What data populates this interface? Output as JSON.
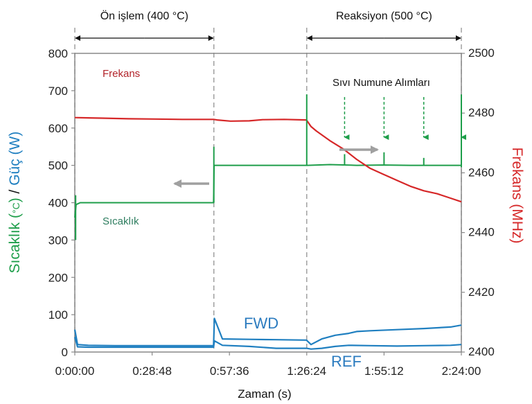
{
  "chart_data": {
    "type": "line",
    "title": "",
    "xlabel": "Zaman (s)",
    "ylabel_left_parts": [
      {
        "text": "Sıcaklık (",
        "color": "#1e9e4a"
      },
      {
        "text": "°C",
        "color": "#1e9e4a",
        "small": true
      },
      {
        "text": ") ",
        "color": "#1e9e4a"
      },
      {
        "text": "/ ",
        "color": "#111111"
      },
      {
        "text": "Güç (W)",
        "color": "#1f7fc0"
      }
    ],
    "ylabel_right": "Frekans (MHz)",
    "x_ticks": [
      "0:00:00",
      "0:28:48",
      "0:57:36",
      "1:26:24",
      "1:55:12",
      "2:24:00"
    ],
    "x_tick_minutes": [
      0,
      28.8,
      57.6,
      86.4,
      115.2,
      144
    ],
    "xlim_minutes": [
      0,
      144
    ],
    "ylim_left": [
      0,
      800
    ],
    "y_ticks_left": [
      0,
      100,
      200,
      300,
      400,
      500,
      600,
      700,
      800
    ],
    "ylim_right": [
      2400,
      2500
    ],
    "y_ticks_right": [
      2400,
      2420,
      2440,
      2460,
      2480,
      2500
    ],
    "phases": [
      {
        "label": "Ön işlem (400 °C)",
        "start_min": 0,
        "end_min": 51.8
      },
      {
        "label": "Reaksiyon (500 °C)",
        "start_min": 86.4,
        "end_min": 144
      }
    ],
    "phase_boundaries_min": [
      51.8,
      86.4
    ],
    "sampling": {
      "label": "Sıvı Numune Alımları",
      "times_min": [
        100.5,
        115.2,
        130,
        144
      ]
    },
    "annotations": {
      "frekans": "Frekans",
      "sicaklik": "Sıcaklık",
      "fwd": "FWD",
      "ref": "REF"
    },
    "series": [
      {
        "name": "Sıcaklık",
        "axis": "left",
        "color": "#1e9e4a",
        "x": [
          0,
          0.5,
          2,
          10,
          20,
          30,
          40,
          51.7,
          51.9,
          55,
          65,
          75,
          86.3,
          86.6,
          95,
          105,
          115,
          125,
          135,
          144
        ],
        "y": [
          360,
          395,
          400,
          400,
          400,
          400,
          400,
          400,
          500,
          500,
          500,
          500,
          500,
          500,
          502,
          500,
          501,
          500,
          500,
          500
        ]
      },
      {
        "name": "Frekans",
        "axis": "right",
        "color": "#d62728",
        "x": [
          0,
          10,
          20,
          30,
          40,
          51.7,
          53,
          58,
          65,
          70,
          78,
          86.3,
          88,
          90,
          95,
          100,
          105,
          110,
          115,
          120,
          125,
          130,
          135,
          140,
          144
        ],
        "y": [
          2478.5,
          2478.3,
          2478.1,
          2478.0,
          2477.9,
          2477.9,
          2477.7,
          2477.3,
          2477.4,
          2477.8,
          2477.9,
          2477.7,
          2475.5,
          2474.0,
          2470.8,
          2468.0,
          2464.5,
          2461.5,
          2459.5,
          2457.5,
          2455.5,
          2454.0,
          2453.0,
          2451.5,
          2450.3
        ]
      },
      {
        "name": "FWD",
        "axis": "left",
        "color": "#1f7fc0",
        "x": [
          0,
          1,
          5,
          15,
          25,
          35,
          45,
          51.7,
          52,
          55,
          65,
          75,
          86.3,
          88,
          92,
          97,
          102,
          105,
          110,
          120,
          130,
          140,
          144
        ],
        "y": [
          60,
          20,
          18,
          17,
          17,
          17,
          17,
          17,
          90,
          35,
          34,
          33,
          32,
          20,
          35,
          45,
          50,
          55,
          57,
          60,
          63,
          67,
          72
        ]
      },
      {
        "name": "REF",
        "axis": "left",
        "color": "#1f7fc0",
        "x": [
          0,
          1,
          5,
          15,
          25,
          35,
          45,
          51.7,
          52,
          55,
          65,
          75,
          86.3,
          88,
          92,
          97,
          102,
          110,
          120,
          130,
          140,
          144
        ],
        "y": [
          40,
          14,
          13,
          13,
          13,
          13,
          13,
          13,
          30,
          18,
          15,
          10,
          10,
          8,
          10,
          15,
          18,
          17,
          16,
          17,
          18,
          20
        ]
      }
    ],
    "spikes": [
      {
        "series": "Sıcaklık",
        "x": 51.8,
        "y1": 400,
        "y2": 550
      },
      {
        "series": "Sıcaklık",
        "x": 86.4,
        "y1": 500,
        "y2": 690
      },
      {
        "series": "Sıcaklık",
        "x": 100.5,
        "y1": 500,
        "y2": 530
      },
      {
        "series": "Sıcaklık",
        "x": 115.2,
        "y1": 500,
        "y2": 535
      },
      {
        "series": "Sıcaklık",
        "x": 130,
        "y1": 500,
        "y2": 520
      },
      {
        "series": "Sıcaklık",
        "x": 144,
        "y1": 495,
        "y2": 690
      },
      {
        "series": "Sıcaklık",
        "x": 0.3,
        "y1": 300,
        "y2": 420
      }
    ],
    "grid": false,
    "legend": "none"
  }
}
